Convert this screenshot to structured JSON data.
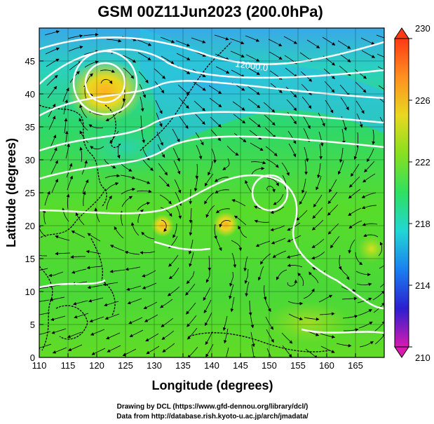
{
  "figure": {
    "title": "GSM 00Z11Jun2023 (200.0hPa)",
    "xlabel": "Longitude (degrees)",
    "ylabel": "Latitude  (degrees)",
    "credits": [
      "Drawing by DCL (https://www.gfd-dennou.org/library/dcl/)",
      "Data from http://database.rish.kyoto-u.ac.jp/arch/jmadata/"
    ],
    "contour_label": "12000.0"
  },
  "chart_data": {
    "type": "heatmap",
    "title": "GSM 00Z11Jun2023 (200.0hPa)",
    "xlabel": "Longitude (degrees)",
    "ylabel": "Latitude  (degrees)",
    "xlim": [
      110,
      170
    ],
    "ylim": [
      0,
      50
    ],
    "x_ticks": [
      "110",
      "115",
      "120",
      "125",
      "130",
      "135",
      "140",
      "145",
      "150",
      "155",
      "160",
      "165"
    ],
    "y_ticks": [
      "0",
      "5",
      "10",
      "15",
      "20",
      "25",
      "30",
      "35",
      "40",
      "45"
    ],
    "colorbar": {
      "min": 210,
      "max": 230,
      "ticks": [
        "210",
        "214",
        "218",
        "222",
        "226",
        "230"
      ],
      "colors": [
        "#d81ab0",
        "#2b1fd0",
        "#1a7ff0",
        "#22d6d6",
        "#2ee060",
        "#86e020",
        "#e8d820",
        "#ff9020",
        "#ff3a14"
      ]
    },
    "grid": true,
    "features": [
      "streamlines",
      "temperature shading",
      "geopotential height contours (white)",
      "coastlines (black)"
    ]
  }
}
